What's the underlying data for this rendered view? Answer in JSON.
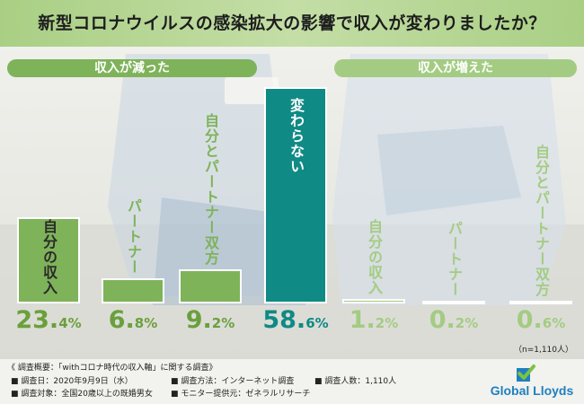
{
  "title": "新型コロナウイルスの感染拡大の影響で収入が変わりましたか？",
  "groups": {
    "decreased": "収入が減った",
    "increased": "収入が増えた"
  },
  "chart_data": {
    "type": "bar",
    "title": "新型コロナウイルスの感染拡大の影響で収入が変わりましたか？",
    "categories": [
      "自分の収入",
      "パートナー",
      "自分とパートナー双方",
      "変わらない",
      "自分の収入",
      "パートナー",
      "自分とパートナー双方"
    ],
    "groups": [
      {
        "name": "収入が減った",
        "indices": [
          0,
          1,
          2
        ]
      },
      {
        "name": "収入が増えた",
        "indices": [
          4,
          5,
          6
        ]
      }
    ],
    "values": [
      23.4,
      6.8,
      9.2,
      58.6,
      1.2,
      0.2,
      0.6
    ],
    "value_labels": [
      {
        "num": "23.",
        "dec": "4%"
      },
      {
        "num": "6.",
        "dec": "8%"
      },
      {
        "num": "9.",
        "dec": "2%"
      },
      {
        "num": "58.",
        "dec": "6%"
      },
      {
        "num": "1.",
        "dec": "2%"
      },
      {
        "num": "0.",
        "dec": "2%"
      },
      {
        "num": "0.",
        "dec": "6%"
      }
    ],
    "unit": "%",
    "ylim": [
      0,
      62
    ],
    "colors": [
      "#7eb35a",
      "#7eb35a",
      "#7eb35a",
      "#0f8a85",
      "#a3cc82",
      "#a3cc82",
      "#a3cc82"
    ],
    "grid": false,
    "legend": "none"
  },
  "sample_note": "（n=1,110人）",
  "footer": {
    "heading": "《 調査概要：「withコロナ時代の収入軸」に関する調査》",
    "date": "■ 調査日：2020年9月9日（水）",
    "method": "■ 調査方法：インターネット調査",
    "count": "■ 調査人数：1,110人",
    "target": "■ 調査対象：全国20歳以上の既婚男女",
    "provider": "■ モニター提供元：ゼネラルリサーチ"
  },
  "logo": {
    "text": "Global Lloyds",
    "color": "#1f7fbf"
  }
}
